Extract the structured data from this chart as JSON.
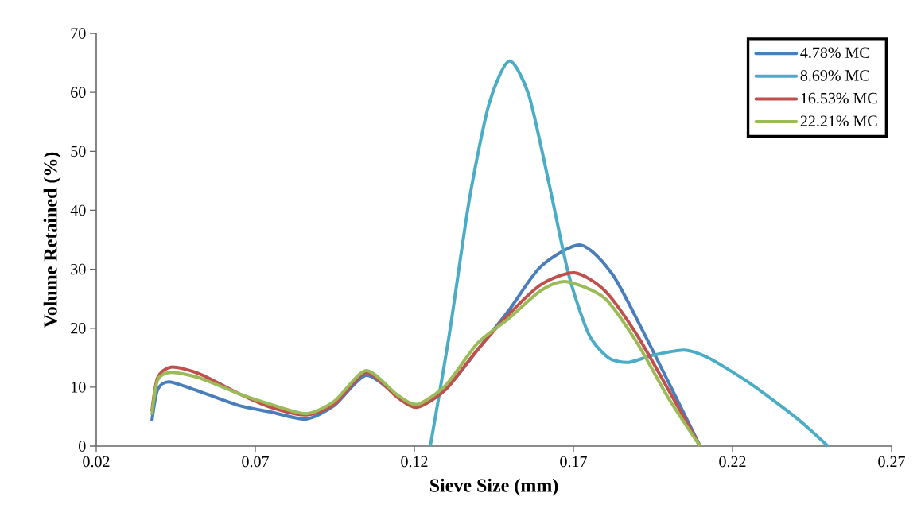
{
  "chart_data": {
    "type": "line",
    "xlabel": "Sieve Size (mm)",
    "ylabel": "Volume Retained (%)",
    "xlim": [
      0.02,
      0.27
    ],
    "xticks": [
      0.02,
      0.07,
      0.12,
      0.17,
      0.22,
      0.27
    ],
    "ylim": [
      0,
      70
    ],
    "yticks": [
      0,
      10,
      20,
      30,
      40,
      50,
      60,
      70
    ],
    "grid": false,
    "legend": "top right",
    "marker": "none",
    "line_style": "solid",
    "series": [
      {
        "name": "4.78% MC",
        "color": "#4a7ebb",
        "x": [
          0.0375,
          0.0393,
          0.043,
          0.0523,
          0.0648,
          0.0748,
          0.086,
          0.0948,
          0.1048,
          0.1148,
          0.121,
          0.1298,
          0.1398,
          0.1498,
          0.1598,
          0.1723,
          0.1823,
          0.1923,
          0.2023,
          0.2098
        ],
        "values": [
          4.3,
          9.6,
          10.9,
          9.3,
          6.9,
          5.8,
          4.6,
          6.9,
          12.0,
          8.5,
          6.7,
          9.6,
          16.3,
          23.1,
          30.5,
          34.1,
          29.1,
          19.0,
          8.2,
          0
        ]
      },
      {
        "name": "8.69% MC",
        "color": "#4bacc6",
        "x": [
          0.125,
          0.131,
          0.1373,
          0.1435,
          0.1498,
          0.156,
          0.1623,
          0.1685,
          0.1748,
          0.181,
          0.1873,
          0.1948,
          0.2048,
          0.2123,
          0.2248,
          0.2398,
          0.25
        ],
        "values": [
          0,
          19.0,
          41.9,
          58.1,
          65.3,
          59.5,
          44.6,
          29.1,
          19.0,
          15.0,
          14.2,
          15.4,
          16.3,
          15.0,
          10.9,
          4.9,
          0
        ]
      },
      {
        "name": "16.53% MC",
        "color": "#c0504d",
        "x": [
          0.0375,
          0.0393,
          0.0435,
          0.0523,
          0.0648,
          0.0748,
          0.086,
          0.0948,
          0.1048,
          0.1148,
          0.121,
          0.1298,
          0.1398,
          0.1498,
          0.1598,
          0.1703,
          0.1798,
          0.1898,
          0.1998,
          0.2098
        ],
        "values": [
          5.9,
          11.6,
          13.4,
          12.3,
          8.9,
          6.6,
          5.3,
          7.1,
          12.5,
          8.2,
          6.6,
          9.6,
          16.3,
          22.4,
          27.4,
          29.4,
          26.4,
          19.0,
          9.6,
          0
        ]
      },
      {
        "name": "22.21% MC",
        "color": "#9bbb59",
        "x": [
          0.0375,
          0.0393,
          0.0435,
          0.0523,
          0.0648,
          0.0748,
          0.086,
          0.0948,
          0.1048,
          0.1148,
          0.121,
          0.1298,
          0.1398,
          0.1498,
          0.1598,
          0.1678,
          0.1798,
          0.1898,
          0.1998,
          0.2098
        ],
        "values": [
          5.3,
          11.2,
          12.5,
          11.6,
          8.9,
          7.1,
          5.5,
          7.6,
          12.8,
          8.6,
          7.1,
          10.3,
          17.4,
          21.7,
          26.4,
          27.9,
          25.1,
          17.7,
          8.2,
          0
        ]
      }
    ]
  }
}
